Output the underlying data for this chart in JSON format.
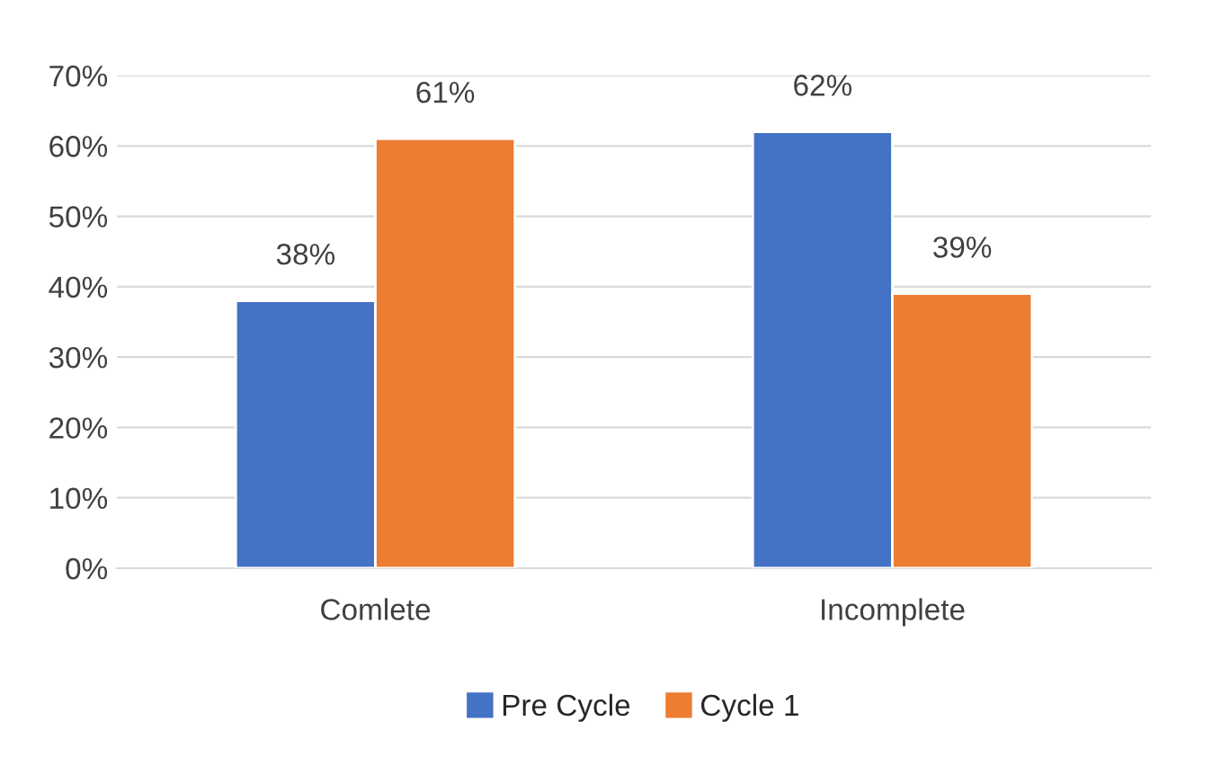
{
  "chart_data": {
    "type": "bar",
    "categories": [
      "Comlete",
      "Incomplete"
    ],
    "series": [
      {
        "name": "Pre Cycle",
        "color": "#4472c4",
        "values": [
          38,
          62
        ],
        "value_labels": [
          "38%",
          "62%"
        ]
      },
      {
        "name": "Cycle 1",
        "color": "#ed7d31",
        "values": [
          61,
          39
        ],
        "value_labels": [
          "61%",
          "39%"
        ]
      }
    ],
    "ylim": [
      0,
      70
    ],
    "yticks": [
      {
        "value": 0,
        "label": "0%"
      },
      {
        "value": 10,
        "label": "10%"
      },
      {
        "value": 20,
        "label": "20%"
      },
      {
        "value": 30,
        "label": "30%"
      },
      {
        "value": 40,
        "label": "40%"
      },
      {
        "value": 50,
        "label": "50%"
      },
      {
        "value": 60,
        "label": "60%"
      },
      {
        "value": 70,
        "label": "70%"
      }
    ],
    "grid": "y",
    "legend": "bottom"
  }
}
